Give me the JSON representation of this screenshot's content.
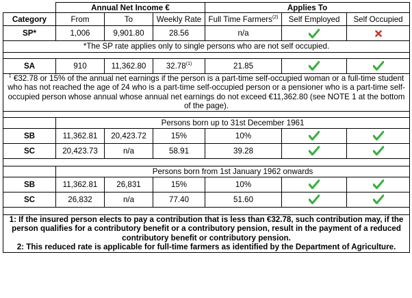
{
  "header": {
    "income_title": "Annual Net Income €",
    "applies_title": "Applies To",
    "category": "Category",
    "from": "From",
    "to": "To",
    "weekly_rate": "Weekly Rate",
    "full_time_farmers": "Full Time Farmers",
    "full_time_farmers_sup": "(2)",
    "self_employed": "Self Employed",
    "self_occupied": "Self Occupied"
  },
  "sp": {
    "category": "SP*",
    "from": "1,006",
    "to": "9,901.80",
    "weekly_rate": "28.56",
    "farmers": "n/a",
    "note": "*The SP rate applies only to single persons who are not self occupied."
  },
  "sa": {
    "category": "SA",
    "from": "910",
    "to": "11,362.80",
    "weekly_rate": "32.78",
    "weekly_rate_sup": "(1)",
    "farmers": "21.85",
    "note_sup": "1",
    "note": " €32.78 or 15% of the annual net earnings if the person is a part-time self-occupied woman or a full-time student who has not reached the age of 24 who is a part-time self-occupied person or a pensioner who is a part-time self-occupied person whose annual whose annual net earnings do not exceed €11,362.80 (see NOTE 1 at the bottom of the page)."
  },
  "group1": {
    "title": "Persons born up to 31st December 1961",
    "rows": [
      {
        "category": "SB",
        "from": "11,362.81",
        "to": "20,423.72",
        "weekly_rate": "15%",
        "farmers": "10%"
      },
      {
        "category": "SC",
        "from": "20,423.73",
        "to": "n/a",
        "weekly_rate": "58.91",
        "farmers": "39.28"
      }
    ]
  },
  "group2": {
    "title": "Persons born from 1st January 1962 onwards",
    "rows": [
      {
        "category": "SB",
        "from": "11,362.81",
        "to": "26,831",
        "weekly_rate": "15%",
        "farmers": "10%"
      },
      {
        "category": "SC",
        "from": "26,832",
        "to": "n/a",
        "weekly_rate": "77.40",
        "farmers": "51.60"
      }
    ]
  },
  "footnotes": {
    "note1": "1: If the insured person elects to pay a contribution that is less than €32.78, such contribution may, if the person qualifies for a contributory benefit or a contributory pension, result in the payment of a reduced contributory benefit or contributory pension.",
    "note2": "2: This reduced rate is applicable for full-time farmers as identified by the Department of Agriculture."
  },
  "icons": {
    "tick": "green-check-icon",
    "cross": "red-cross-icon"
  },
  "colors": {
    "tick": "#3cb043",
    "cross": "#c0392b"
  }
}
